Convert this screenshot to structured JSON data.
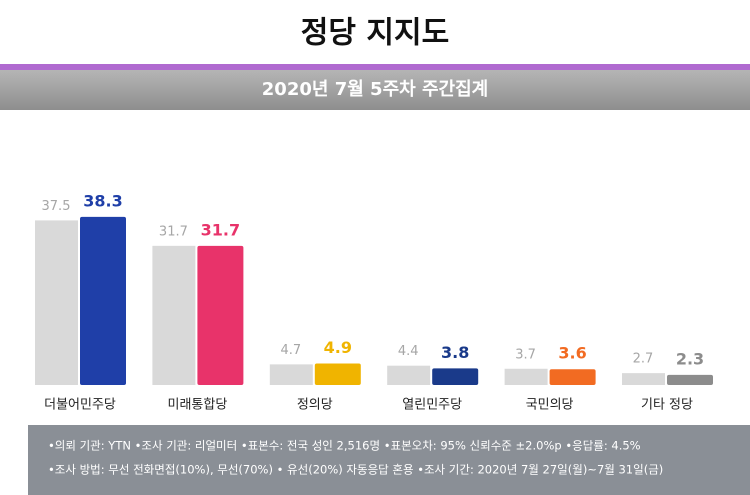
{
  "chart_data": {
    "type": "bar",
    "title": "정당 지지도",
    "subtitle": "2020년 7월 5주차 주간집계",
    "categories": [
      "더불어민주당",
      "미래통합당",
      "정의당",
      "열린민주당",
      "국민의당",
      "기타 정당"
    ],
    "series": [
      {
        "color": "#d9d9d9",
        "label_color": "#a6a6a6",
        "values": [
          37.5,
          31.7,
          4.7,
          4.4,
          3.7,
          2.7
        ]
      },
      {
        "colors": [
          "#1f3fa8",
          "#e8336a",
          "#f0b400",
          "#1a3a8a",
          "#f26b22",
          "#8c8c8c"
        ],
        "values": [
          38.3,
          31.7,
          4.9,
          3.8,
          3.6,
          2.3
        ]
      }
    ],
    "footer": [
      "•의뢰 기관: YTN •조사 기관: 리얼미터 •표본수: 전국 성인 2,516명 •표본오차: 95% 신뢰수준 ±2.0%p •응답률: 4.5%",
      "•조사 방법: 무선 전화면접(10%), 무선(70%) • 유선(20%) 자동응답 혼용 •조사 기간: 2020년 7월 27일(월)~7월 31일(금)"
    ]
  }
}
